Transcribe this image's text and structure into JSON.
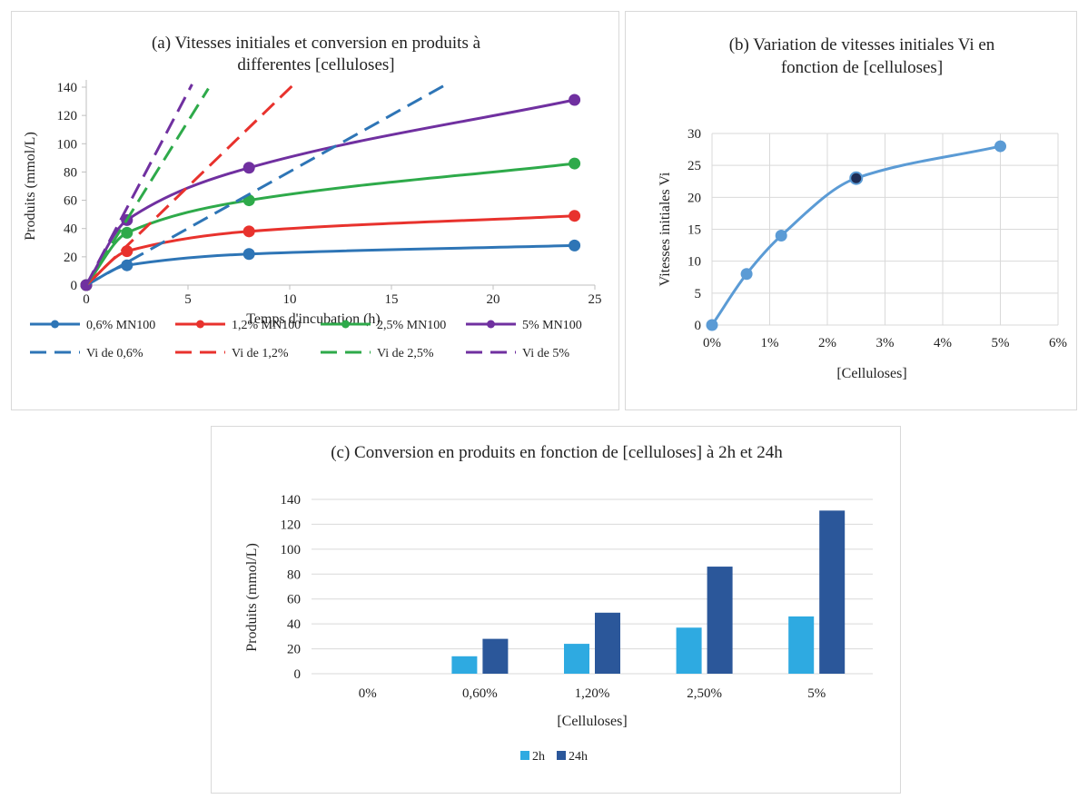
{
  "chart_data": [
    {
      "type": "line",
      "title_lines": [
        "(a) Vitesses initiales et conversion en produits à",
        "differentes [celluloses]"
      ],
      "xlabel": "Temps d'incubation (h)",
      "ylabel": "Produits (mmol/L)",
      "xlim": [
        0,
        25
      ],
      "ylim": [
        0,
        140
      ],
      "xticks": [
        0,
        5,
        10,
        15,
        20,
        25
      ],
      "yticks": [
        0,
        20,
        40,
        60,
        80,
        100,
        120,
        140
      ],
      "x_tick_labels": [
        "0",
        "5",
        "10",
        "15",
        "20",
        "25"
      ],
      "y_tick_labels": [
        "0",
        "20",
        "40",
        "60",
        "80",
        "100",
        "120",
        "140"
      ],
      "grid": false,
      "legend_position": "bottom",
      "series": [
        {
          "name": "0,6% MN100",
          "color": "#2E75B6",
          "style": "solid-markers",
          "x": [
            0,
            2,
            8,
            24
          ],
          "y": [
            0,
            14,
            22,
            28
          ]
        },
        {
          "name": "1,2% MN100",
          "color": "#E8322D",
          "style": "solid-markers",
          "x": [
            0,
            2,
            8,
            24
          ],
          "y": [
            0,
            24,
            38,
            49
          ]
        },
        {
          "name": "2,5% MN100",
          "color": "#2EAA4A",
          "style": "solid-markers",
          "x": [
            0,
            2,
            8,
            24
          ],
          "y": [
            0,
            37,
            60,
            86
          ]
        },
        {
          "name": "5% MN100",
          "color": "#7030A0",
          "style": "solid-markers",
          "x": [
            0,
            2,
            8,
            24
          ],
          "y": [
            0,
            46,
            83,
            131
          ]
        },
        {
          "name": "Vi de 0,6%",
          "color": "#2E75B6",
          "style": "dashed",
          "x": [
            0,
            17.7
          ],
          "y": [
            0,
            142
          ]
        },
        {
          "name": "Vi de 1,2%",
          "color": "#E8322D",
          "style": "dashed",
          "x": [
            0,
            10.2
          ],
          "y": [
            0,
            142
          ]
        },
        {
          "name": "Vi de 2,5%",
          "color": "#2EAA4A",
          "style": "dashed",
          "x": [
            0,
            6.0
          ],
          "y": [
            0,
            139
          ]
        },
        {
          "name": "Vi de 5%",
          "color": "#7030A0",
          "style": "dashed",
          "x": [
            0,
            5.2
          ],
          "y": [
            0,
            142
          ]
        }
      ]
    },
    {
      "type": "line",
      "title_lines": [
        "(b) Variation de vitesses initiales Vi en",
        "fonction de [celluloses]"
      ],
      "xlabel": "[Celluloses]",
      "ylabel": "Vitesses initiales Vi",
      "xlim": [
        0,
        6
      ],
      "ylim": [
        0,
        30
      ],
      "xticks": [
        0,
        1,
        2,
        3,
        4,
        5,
        6
      ],
      "yticks": [
        0,
        5,
        10,
        15,
        20,
        25,
        30
      ],
      "x_tick_labels": [
        "0%",
        "1%",
        "2%",
        "3%",
        "4%",
        "5%",
        "6%"
      ],
      "y_tick_labels": [
        "0",
        "5",
        "10",
        "15",
        "20",
        "25",
        "30"
      ],
      "grid": true,
      "series": [
        {
          "color": "#5B9BD5",
          "x": [
            0,
            0.6,
            1.2,
            2.5,
            5
          ],
          "y": [
            0,
            8,
            14,
            23,
            28
          ]
        }
      ],
      "highlight_point_color": "#1F2D55"
    },
    {
      "type": "bar",
      "title": "(c) Conversion en produits en fonction de [celluloses] à 2h et 24h",
      "xlabel": "[Celluloses]",
      "ylabel": "Produits (mmol/L)",
      "categories": [
        "0%",
        "0,60%",
        "1,20%",
        "2,50%",
        "5%"
      ],
      "ylim": [
        0,
        140
      ],
      "yticks": [
        0,
        20,
        40,
        60,
        80,
        100,
        120,
        140
      ],
      "y_tick_labels": [
        "0",
        "20",
        "40",
        "60",
        "80",
        "100",
        "120",
        "140"
      ],
      "grid": true,
      "legend_position": "bottom",
      "series": [
        {
          "name": "2h",
          "color": "#2EAAE1",
          "values": [
            0,
            14,
            24,
            37,
            46
          ]
        },
        {
          "name": "24h",
          "color": "#2B579A",
          "values": [
            0,
            28,
            49,
            86,
            131
          ]
        }
      ]
    }
  ]
}
